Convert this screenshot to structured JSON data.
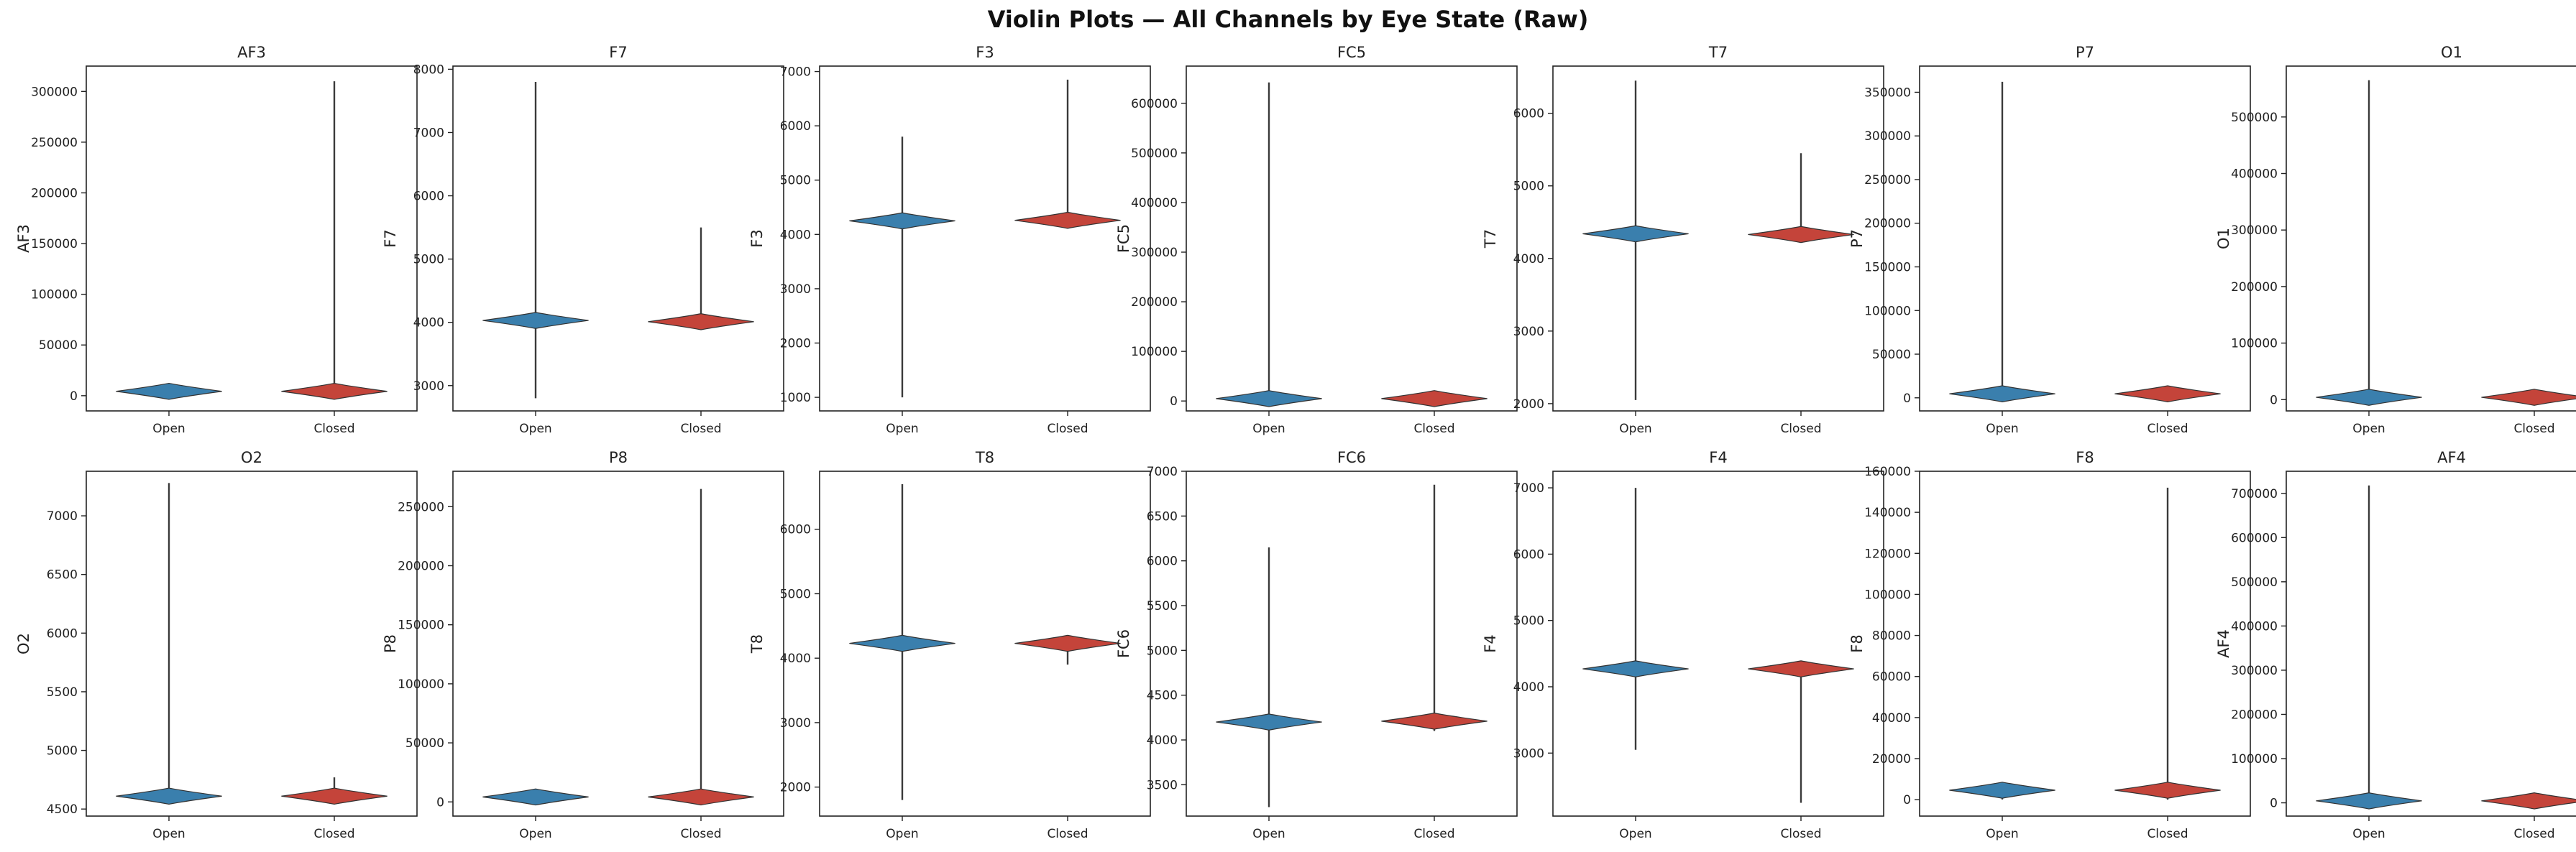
{
  "title": "Violin Plots — All Channels by Eye State (Raw)",
  "colors": {
    "open": "#3a7fad",
    "closed": "#c4443a",
    "axis": "#222222",
    "whisker": "#3a3a3a"
  },
  "chart_data": [
    {
      "type": "violin",
      "title": "AF3",
      "ylabel": "AF3",
      "categories": [
        "Open",
        "Closed"
      ],
      "yticks": [
        0,
        50000,
        100000,
        150000,
        200000,
        250000,
        300000
      ],
      "ytick_labels": [
        "0",
        "50000",
        "100000",
        "150000",
        "200000",
        "250000",
        "300000"
      ],
      "ylim": [
        -15000,
        325000
      ],
      "series": [
        {
          "category": "Open",
          "median": 4300,
          "min": 1000,
          "max": 9000,
          "spread": 0.8
        },
        {
          "category": "Closed",
          "median": 4300,
          "min": 0,
          "max": 310000,
          "spread": 0.8
        }
      ]
    },
    {
      "type": "violin",
      "title": "F7",
      "ylabel": "F7",
      "categories": [
        "Open",
        "Closed"
      ],
      "yticks": [
        3000,
        4000,
        5000,
        6000,
        7000,
        8000
      ],
      "ytick_labels": [
        "3000",
        "4000",
        "5000",
        "6000",
        "7000",
        "8000"
      ],
      "ylim": [
        2600,
        8050
      ],
      "series": [
        {
          "category": "Open",
          "median": 4030,
          "min": 2800,
          "max": 7800,
          "spread": 0.8
        },
        {
          "category": "Closed",
          "median": 4010,
          "min": 3920,
          "max": 5500,
          "spread": 0.8
        }
      ]
    },
    {
      "type": "violin",
      "title": "F3",
      "ylabel": "F3",
      "categories": [
        "Open",
        "Closed"
      ],
      "yticks": [
        1000,
        2000,
        3000,
        4000,
        5000,
        6000,
        7000
      ],
      "ytick_labels": [
        "1000",
        "2000",
        "3000",
        "4000",
        "5000",
        "6000",
        "7000"
      ],
      "ylim": [
        750,
        7100
      ],
      "series": [
        {
          "category": "Open",
          "median": 4250,
          "min": 1000,
          "max": 5800,
          "spread": 0.8
        },
        {
          "category": "Closed",
          "median": 4260,
          "min": 4150,
          "max": 6850,
          "spread": 0.8
        }
      ]
    },
    {
      "type": "violin",
      "title": "FC5",
      "ylabel": "FC5",
      "categories": [
        "Open",
        "Closed"
      ],
      "yticks": [
        0,
        100000,
        200000,
        300000,
        400000,
        500000,
        600000
      ],
      "ytick_labels": [
        "0",
        "100000",
        "200000",
        "300000",
        "400000",
        "500000",
        "600000"
      ],
      "ylim": [
        -20000,
        675000
      ],
      "series": [
        {
          "category": "Open",
          "median": 4800,
          "min": 0,
          "max": 642000,
          "spread": 0.8
        },
        {
          "category": "Closed",
          "median": 4800,
          "min": 3000,
          "max": 6000,
          "spread": 0.8
        }
      ]
    },
    {
      "type": "violin",
      "title": "T7",
      "ylabel": "T7",
      "categories": [
        "Open",
        "Closed"
      ],
      "yticks": [
        2000,
        3000,
        4000,
        5000,
        6000
      ],
      "ytick_labels": [
        "2000",
        "3000",
        "4000",
        "5000",
        "6000"
      ],
      "ylim": [
        1900,
        6650
      ],
      "series": [
        {
          "category": "Open",
          "median": 4340,
          "min": 2050,
          "max": 6450,
          "spread": 0.8
        },
        {
          "category": "Closed",
          "median": 4330,
          "min": 4250,
          "max": 5450,
          "spread": 0.8
        }
      ]
    },
    {
      "type": "violin",
      "title": "P7",
      "ylabel": "P7",
      "categories": [
        "Open",
        "Closed"
      ],
      "yticks": [
        0,
        50000,
        100000,
        150000,
        200000,
        250000,
        300000,
        350000
      ],
      "ytick_labels": [
        "0",
        "50000",
        "100000",
        "150000",
        "200000",
        "250000",
        "300000",
        "350000"
      ],
      "ylim": [
        -15000,
        380000
      ],
      "series": [
        {
          "category": "Open",
          "median": 4600,
          "min": 0,
          "max": 362000,
          "spread": 0.8
        },
        {
          "category": "Closed",
          "median": 4600,
          "min": 3500,
          "max": 5500,
          "spread": 0.8
        }
      ]
    },
    {
      "type": "violin",
      "title": "O1",
      "ylabel": "O1",
      "categories": [
        "Open",
        "Closed"
      ],
      "yticks": [
        0,
        100000,
        200000,
        300000,
        400000,
        500000
      ],
      "ytick_labels": [
        "0",
        "100000",
        "200000",
        "300000",
        "400000",
        "500000"
      ],
      "ylim": [
        -20000,
        590000
      ],
      "series": [
        {
          "category": "Open",
          "median": 4100,
          "min": 0,
          "max": 565000,
          "spread": 0.8
        },
        {
          "category": "Closed",
          "median": 4100,
          "min": 3000,
          "max": 5000,
          "spread": 0.8
        }
      ]
    },
    {
      "type": "violin",
      "title": "O2",
      "ylabel": "O2",
      "categories": [
        "Open",
        "Closed"
      ],
      "yticks": [
        4500,
        5000,
        5500,
        6000,
        6500,
        7000
      ],
      "ytick_labels": [
        "4500",
        "5000",
        "5500",
        "6000",
        "6500",
        "7000"
      ],
      "ylim": [
        4440,
        7380
      ],
      "series": [
        {
          "category": "Open",
          "median": 4610,
          "min": 4560,
          "max": 7280,
          "spread": 0.8
        },
        {
          "category": "Closed",
          "median": 4610,
          "min": 4560,
          "max": 4770,
          "spread": 0.8
        }
      ]
    },
    {
      "type": "violin",
      "title": "P8",
      "ylabel": "P8",
      "categories": [
        "Open",
        "Closed"
      ],
      "yticks": [
        0,
        50000,
        100000,
        150000,
        200000,
        250000
      ],
      "ytick_labels": [
        "0",
        "50000",
        "100000",
        "150000",
        "200000",
        "250000"
      ],
      "ylim": [
        -12000,
        280000
      ],
      "series": [
        {
          "category": "Open",
          "median": 4200,
          "min": 1000,
          "max": 8000,
          "spread": 0.8
        },
        {
          "category": "Closed",
          "median": 4200,
          "min": 0,
          "max": 265000,
          "spread": 0.8
        }
      ]
    },
    {
      "type": "violin",
      "title": "T8",
      "ylabel": "T8",
      "categories": [
        "Open",
        "Closed"
      ],
      "yticks": [
        2000,
        3000,
        4000,
        5000,
        6000
      ],
      "ytick_labels": [
        "2000",
        "3000",
        "4000",
        "5000",
        "6000"
      ],
      "ylim": [
        1550,
        6900
      ],
      "series": [
        {
          "category": "Open",
          "median": 4230,
          "min": 1800,
          "max": 6700,
          "spread": 0.8
        },
        {
          "category": "Closed",
          "median": 4230,
          "min": 3900,
          "max": 4300,
          "spread": 0.8
        }
      ]
    },
    {
      "type": "violin",
      "title": "FC6",
      "ylabel": "FC6",
      "categories": [
        "Open",
        "Closed"
      ],
      "yticks": [
        3500,
        4000,
        4500,
        5000,
        5500,
        6000,
        6500,
        7000
      ],
      "ytick_labels": [
        "3500",
        "4000",
        "4500",
        "5000",
        "5500",
        "6000",
        "6500",
        "7000"
      ],
      "ylim": [
        3150,
        7000
      ],
      "series": [
        {
          "category": "Open",
          "median": 4200,
          "min": 3250,
          "max": 6150,
          "spread": 0.8
        },
        {
          "category": "Closed",
          "median": 4210,
          "min": 4100,
          "max": 6850,
          "spread": 0.8
        }
      ]
    },
    {
      "type": "violin",
      "title": "F4",
      "ylabel": "F4",
      "categories": [
        "Open",
        "Closed"
      ],
      "yticks": [
        3000,
        4000,
        5000,
        6000,
        7000
      ],
      "ytick_labels": [
        "3000",
        "4000",
        "5000",
        "6000",
        "7000"
      ],
      "ylim": [
        2050,
        7250
      ],
      "series": [
        {
          "category": "Open",
          "median": 4270,
          "min": 3050,
          "max": 7000,
          "spread": 0.8
        },
        {
          "category": "Closed",
          "median": 4270,
          "min": 2250,
          "max": 4350,
          "spread": 0.8
        }
      ]
    },
    {
      "type": "violin",
      "title": "F8",
      "ylabel": "F8",
      "categories": [
        "Open",
        "Closed"
      ],
      "yticks": [
        0,
        20000,
        40000,
        60000,
        80000,
        100000,
        120000,
        140000,
        160000
      ],
      "ytick_labels": [
        "0",
        "20000",
        "40000",
        "60000",
        "80000",
        "100000",
        "120000",
        "140000",
        "160000"
      ],
      "ylim": [
        -8000,
        160000
      ],
      "series": [
        {
          "category": "Open",
          "median": 4600,
          "min": 100,
          "max": 6000,
          "spread": 0.8
        },
        {
          "category": "Closed",
          "median": 4600,
          "min": 0,
          "max": 152000,
          "spread": 0.8
        }
      ]
    },
    {
      "type": "violin",
      "title": "AF4",
      "ylabel": "AF4",
      "categories": [
        "Open",
        "Closed"
      ],
      "yticks": [
        0,
        100000,
        200000,
        300000,
        400000,
        500000,
        600000,
        700000
      ],
      "ytick_labels": [
        "0",
        "100000",
        "200000",
        "300000",
        "400000",
        "500000",
        "600000",
        "700000"
      ],
      "ylim": [
        -30000,
        750000
      ],
      "series": [
        {
          "category": "Open",
          "median": 4400,
          "min": 0,
          "max": 718000,
          "spread": 0.8
        },
        {
          "category": "Closed",
          "median": 4400,
          "min": 3000,
          "max": 5500,
          "spread": 0.8
        }
      ]
    }
  ]
}
